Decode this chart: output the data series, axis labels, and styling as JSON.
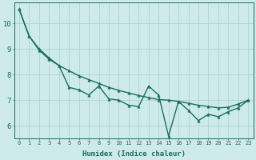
{
  "xlabel": "Humidex (Indice chaleur)",
  "bg_color": "#ceeaea",
  "grid_color": "#aed4d4",
  "line_color": "#1a6e62",
  "xlim": [
    -0.5,
    23.5
  ],
  "ylim": [
    5.5,
    10.8
  ],
  "xticks": [
    0,
    1,
    2,
    3,
    4,
    5,
    6,
    7,
    8,
    9,
    10,
    11,
    12,
    13,
    14,
    15,
    16,
    17,
    18,
    19,
    20,
    21,
    22,
    23
  ],
  "yticks": [
    6,
    7,
    8,
    9,
    10
  ],
  "line1_x": [
    0,
    1,
    2,
    3,
    4,
    5,
    6,
    7,
    8,
    9,
    10,
    11,
    12,
    13,
    14,
    15,
    16,
    17,
    18,
    19,
    20,
    21,
    22,
    23
  ],
  "line1_y": [
    10.55,
    9.5,
    9.0,
    8.65,
    8.35,
    7.5,
    7.4,
    7.2,
    7.55,
    7.05,
    7.0,
    6.8,
    6.75,
    7.55,
    7.2,
    5.6,
    6.95,
    6.6,
    6.2,
    6.45,
    6.35,
    6.55,
    6.7,
    7.0
  ],
  "line2_x": [
    0,
    1,
    2,
    3,
    4,
    5,
    6,
    7,
    8,
    9,
    10,
    11,
    12,
    13,
    14,
    15,
    16,
    17,
    18,
    19,
    20,
    21,
    22,
    23
  ],
  "line2_y": [
    10.55,
    9.5,
    8.95,
    8.6,
    8.35,
    8.15,
    7.95,
    7.8,
    7.65,
    7.5,
    7.38,
    7.28,
    7.18,
    7.1,
    7.02,
    7.0,
    6.95,
    6.88,
    6.8,
    6.75,
    6.7,
    6.72,
    6.85,
    7.0
  ],
  "marker_size": 2.5,
  "line_width": 1.0,
  "xlabel_fontsize": 6.5,
  "tick_fontsize_x": 5.0,
  "tick_fontsize_y": 6.5
}
